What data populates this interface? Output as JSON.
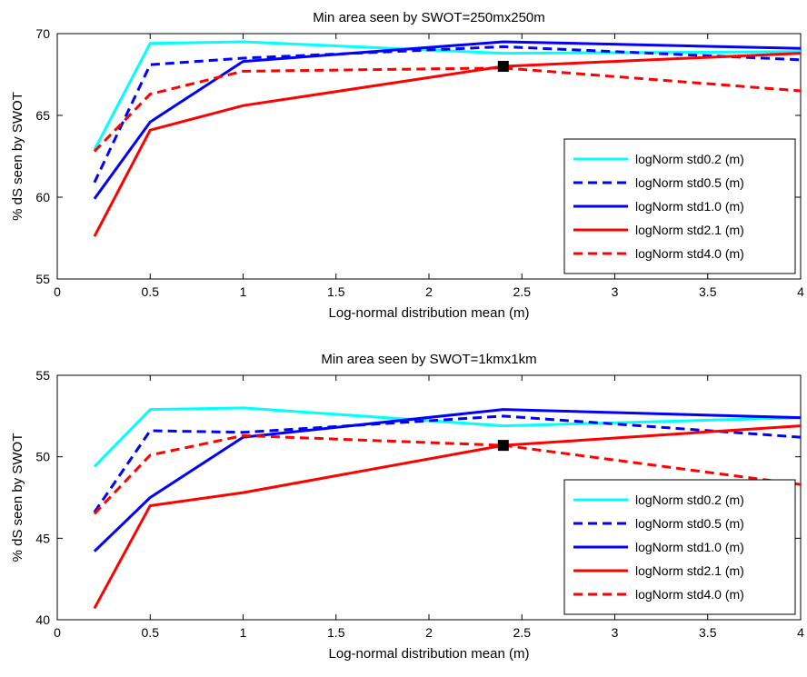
{
  "chart_data": [
    {
      "type": "line",
      "title": "Min area seen by SWOT=250mx250m",
      "xlabel": "Log-normal distribution mean (m)",
      "ylabel": "% dS seen by SWOT",
      "xlim": [
        0,
        4
      ],
      "ylim": [
        55,
        70
      ],
      "xticks": [
        0,
        0.5,
        1,
        1.5,
        2,
        2.5,
        3,
        3.5,
        4
      ],
      "xtick_labels": [
        "0",
        "0.5",
        "1",
        "1.5",
        "2",
        "2.5",
        "3",
        "3.5",
        "4"
      ],
      "yticks": [
        55,
        60,
        65,
        70
      ],
      "ytick_labels": [
        "55",
        "60",
        "65",
        "70"
      ],
      "x": [
        0.2,
        0.5,
        1,
        2.4,
        4
      ],
      "legend_position": "bottom-right",
      "series": [
        {
          "name": "logNorm std0.2 (m)",
          "color": "#00ffff",
          "dash": "solid",
          "values": [
            62.9,
            69.4,
            69.5,
            68.8,
            68.9
          ]
        },
        {
          "name": "logNorm std0.5 (m)",
          "color": "#0000ff",
          "dash": "dashed",
          "values": [
            60.9,
            68.1,
            68.5,
            69.2,
            68.4
          ]
        },
        {
          "name": "logNorm std1.0 (m)",
          "color": "#0000ff",
          "dash": "solid",
          "values": [
            59.9,
            64.6,
            68.3,
            69.5,
            69.1
          ]
        },
        {
          "name": "logNorm std2.1 (m)",
          "color": "#ff0000",
          "dash": "solid",
          "values": [
            57.6,
            64.1,
            65.6,
            68.0,
            68.8
          ]
        },
        {
          "name": "logNorm std4.0 (m)",
          "color": "#ff0000",
          "dash": "dashed",
          "values": [
            62.8,
            66.3,
            67.7,
            67.9,
            66.5
          ]
        }
      ],
      "marker": {
        "x": 2.4,
        "y": 68.0,
        "color": "#000000"
      }
    },
    {
      "type": "line",
      "title": "Min area seen by SWOT=1kmx1km",
      "xlabel": "Log-normal distribution mean (m)",
      "ylabel": "% dS seen by SWOT",
      "xlim": [
        0,
        4
      ],
      "ylim": [
        40,
        55
      ],
      "xticks": [
        0,
        0.5,
        1,
        1.5,
        2,
        2.5,
        3,
        3.5,
        4
      ],
      "xtick_labels": [
        "0",
        "0.5",
        "1",
        "1.5",
        "2",
        "2.5",
        "3",
        "3.5",
        "4"
      ],
      "yticks": [
        40,
        45,
        50,
        55
      ],
      "ytick_labels": [
        "40",
        "45",
        "50",
        "55"
      ],
      "x": [
        0.2,
        0.5,
        1,
        2.4,
        4
      ],
      "legend_position": "bottom-right",
      "series": [
        {
          "name": "logNorm std0.2 (m)",
          "color": "#00ffff",
          "dash": "solid",
          "values": [
            49.4,
            52.9,
            53.0,
            51.9,
            52.4
          ]
        },
        {
          "name": "logNorm std0.5 (m)",
          "color": "#0000ff",
          "dash": "dashed",
          "values": [
            46.6,
            51.6,
            51.5,
            52.5,
            51.2
          ]
        },
        {
          "name": "logNorm std1.0 (m)",
          "color": "#0000ff",
          "dash": "solid",
          "values": [
            44.2,
            47.5,
            51.2,
            52.9,
            52.4
          ]
        },
        {
          "name": "logNorm std2.1 (m)",
          "color": "#ff0000",
          "dash": "solid",
          "values": [
            40.7,
            47.0,
            47.8,
            50.7,
            51.9
          ]
        },
        {
          "name": "logNorm std4.0 (m)",
          "color": "#ff0000",
          "dash": "dashed",
          "values": [
            46.5,
            50.1,
            51.3,
            50.7,
            48.3
          ]
        }
      ],
      "marker": {
        "x": 2.4,
        "y": 50.7,
        "color": "#000000"
      }
    }
  ]
}
